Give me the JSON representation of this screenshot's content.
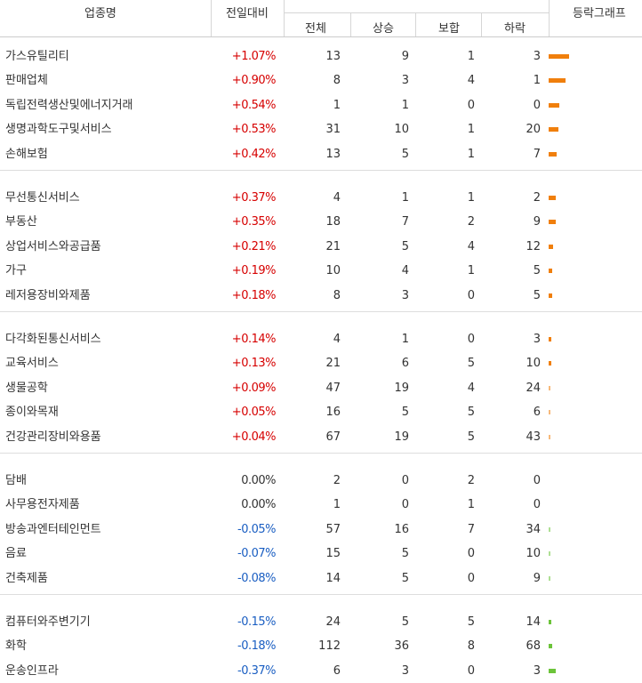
{
  "header": {
    "industry": "업종명",
    "change": "전일대비",
    "total": "전체",
    "rise": "상승",
    "flat": "보합",
    "fall": "하락",
    "graph": "등락그래프"
  },
  "colors": {
    "up": "#d60000",
    "down": "#1a5ec2",
    "flat": "#333333",
    "up_bar": "#f07f0c",
    "down_bar": "#6cc43a"
  },
  "groups": [
    [
      {
        "name": "가스유틸리티",
        "change": "+1.07%",
        "dir": "up",
        "total": "13",
        "rise": "9",
        "flat": "1",
        "fall": "3",
        "graph_pct": 1.07
      },
      {
        "name": "판매업체",
        "change": "+0.90%",
        "dir": "up",
        "total": "8",
        "rise": "3",
        "flat": "4",
        "fall": "1",
        "graph_pct": 0.9
      },
      {
        "name": "독립전력생산및에너지거래",
        "change": "+0.54%",
        "dir": "up",
        "total": "1",
        "rise": "1",
        "flat": "0",
        "fall": "0",
        "graph_pct": 0.54
      },
      {
        "name": "생명과학도구및서비스",
        "change": "+0.53%",
        "dir": "up",
        "total": "31",
        "rise": "10",
        "flat": "1",
        "fall": "20",
        "graph_pct": 0.53
      },
      {
        "name": "손해보험",
        "change": "+0.42%",
        "dir": "up",
        "total": "13",
        "rise": "5",
        "flat": "1",
        "fall": "7",
        "graph_pct": 0.42
      }
    ],
    [
      {
        "name": "무선통신서비스",
        "change": "+0.37%",
        "dir": "up",
        "total": "4",
        "rise": "1",
        "flat": "1",
        "fall": "2",
        "graph_pct": 0.37
      },
      {
        "name": "부동산",
        "change": "+0.35%",
        "dir": "up",
        "total": "18",
        "rise": "7",
        "flat": "2",
        "fall": "9",
        "graph_pct": 0.35
      },
      {
        "name": "상업서비스와공급품",
        "change": "+0.21%",
        "dir": "up",
        "total": "21",
        "rise": "5",
        "flat": "4",
        "fall": "12",
        "graph_pct": 0.21
      },
      {
        "name": "가구",
        "change": "+0.19%",
        "dir": "up",
        "total": "10",
        "rise": "4",
        "flat": "1",
        "fall": "5",
        "graph_pct": 0.19
      },
      {
        "name": "레저용장비와제품",
        "change": "+0.18%",
        "dir": "up",
        "total": "8",
        "rise": "3",
        "flat": "0",
        "fall": "5",
        "graph_pct": 0.18
      }
    ],
    [
      {
        "name": "다각화된통신서비스",
        "change": "+0.14%",
        "dir": "up",
        "total": "4",
        "rise": "1",
        "flat": "0",
        "fall": "3",
        "graph_pct": 0.14
      },
      {
        "name": "교육서비스",
        "change": "+0.13%",
        "dir": "up",
        "total": "21",
        "rise": "6",
        "flat": "5",
        "fall": "10",
        "graph_pct": 0.13
      },
      {
        "name": "생물공학",
        "change": "+0.09%",
        "dir": "up",
        "total": "47",
        "rise": "19",
        "flat": "4",
        "fall": "24",
        "graph_pct": 0.09
      },
      {
        "name": "종이와목재",
        "change": "+0.05%",
        "dir": "up",
        "total": "16",
        "rise": "5",
        "flat": "5",
        "fall": "6",
        "graph_pct": 0.05
      },
      {
        "name": "건강관리장비와용품",
        "change": "+0.04%",
        "dir": "up",
        "total": "67",
        "rise": "19",
        "flat": "5",
        "fall": "43",
        "graph_pct": 0.04
      }
    ],
    [
      {
        "name": "담배",
        "change": "0.00%",
        "dir": "flat",
        "total": "2",
        "rise": "0",
        "flat": "2",
        "fall": "0",
        "graph_pct": 0
      },
      {
        "name": "사무용전자제품",
        "change": "0.00%",
        "dir": "flat",
        "total": "1",
        "rise": "0",
        "flat": "1",
        "fall": "0",
        "graph_pct": 0
      },
      {
        "name": "방송과엔터테인먼트",
        "change": "-0.05%",
        "dir": "down",
        "total": "57",
        "rise": "16",
        "flat": "7",
        "fall": "34",
        "graph_pct": 0.05
      },
      {
        "name": "음료",
        "change": "-0.07%",
        "dir": "down",
        "total": "15",
        "rise": "5",
        "flat": "0",
        "fall": "10",
        "graph_pct": 0.07
      },
      {
        "name": "건축제품",
        "change": "-0.08%",
        "dir": "down",
        "total": "14",
        "rise": "5",
        "flat": "0",
        "fall": "9",
        "graph_pct": 0.08
      }
    ],
    [
      {
        "name": "컴퓨터와주변기기",
        "change": "-0.15%",
        "dir": "down",
        "total": "24",
        "rise": "5",
        "flat": "5",
        "fall": "14",
        "graph_pct": 0.15
      },
      {
        "name": "화학",
        "change": "-0.18%",
        "dir": "down",
        "total": "112",
        "rise": "36",
        "flat": "8",
        "fall": "68",
        "graph_pct": 0.18
      },
      {
        "name": "운송인프라",
        "change": "-0.37%",
        "dir": "down",
        "total": "6",
        "rise": "3",
        "flat": "0",
        "fall": "3",
        "graph_pct": 0.37
      }
    ]
  ]
}
